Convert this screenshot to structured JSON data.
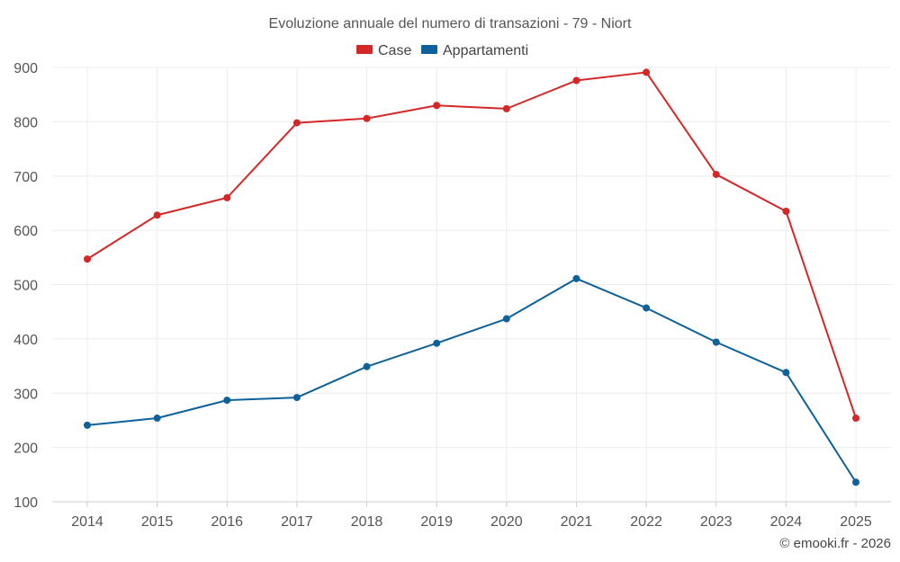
{
  "chart_data": {
    "type": "line",
    "title": "Evoluzione annuale del numero di transazioni - 79 - Niort",
    "categories": [
      "2014",
      "2015",
      "2016",
      "2017",
      "2018",
      "2019",
      "2020",
      "2021",
      "2022",
      "2023",
      "2024",
      "2025"
    ],
    "series": [
      {
        "name": "Case",
        "color": "#d62728",
        "values": [
          547,
          628,
          660,
          798,
          806,
          830,
          824,
          876,
          891,
          703,
          635,
          254
        ]
      },
      {
        "name": "Appartamenti",
        "color": "#0e6199",
        "values": [
          241,
          254,
          287,
          292,
          349,
          392,
          437,
          511,
          457,
          394,
          338,
          136
        ]
      }
    ],
    "ylim": [
      100,
      900
    ],
    "yticks": [
      "100",
      "200",
      "300",
      "400",
      "500",
      "600",
      "700",
      "800",
      "900"
    ],
    "grid": true,
    "legend_position": "top-center",
    "xlabel": "",
    "ylabel": ""
  },
  "credit": "© emooki.fr - 2026"
}
